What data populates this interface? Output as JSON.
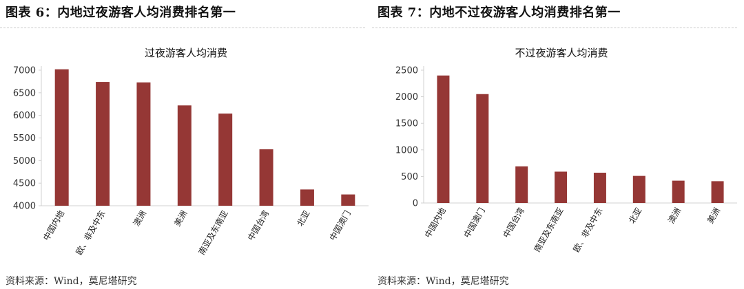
{
  "figures": [
    {
      "fig_title": "图表 6：内地过夜游客人均消费排名第一",
      "source": "资料来源：Wind，莫尼塔研究"
    },
    {
      "fig_title": "图表 7：内地不过夜游客人均消费排名第一",
      "source": "资料来源：Wind，莫尼塔研究"
    }
  ],
  "chart_data": [
    {
      "type": "bar",
      "title": "过夜游客人均消费",
      "categories": [
        "中国内地",
        "欧、非及中东",
        "澳洲",
        "美洲",
        "南亚及东南亚",
        "中国台湾",
        "北亚",
        "中国澳门"
      ],
      "values": [
        7020,
        6740,
        6730,
        6220,
        6040,
        5250,
        4360,
        4250
      ],
      "ylim": [
        4000,
        7000
      ],
      "yticks": [
        4000,
        4500,
        5000,
        5500,
        6000,
        6500,
        7000
      ],
      "xlabel": "",
      "ylabel": "",
      "bar_color": "#953735",
      "grid": false,
      "legend": "none"
    },
    {
      "type": "bar",
      "title": "不过夜游客人均消费",
      "categories": [
        "中国内地",
        "中国澳门",
        "中国台湾",
        "南亚及东南亚",
        "欧、非及中东",
        "北亚",
        "澳洲",
        "美洲"
      ],
      "values": [
        2400,
        2050,
        690,
        590,
        570,
        510,
        420,
        410
      ],
      "ylim": [
        0,
        2500
      ],
      "yticks": [
        0,
        500,
        1000,
        1500,
        2000,
        2500
      ],
      "xlabel": "",
      "ylabel": "",
      "bar_color": "#953735",
      "grid": false,
      "legend": "none"
    }
  ]
}
